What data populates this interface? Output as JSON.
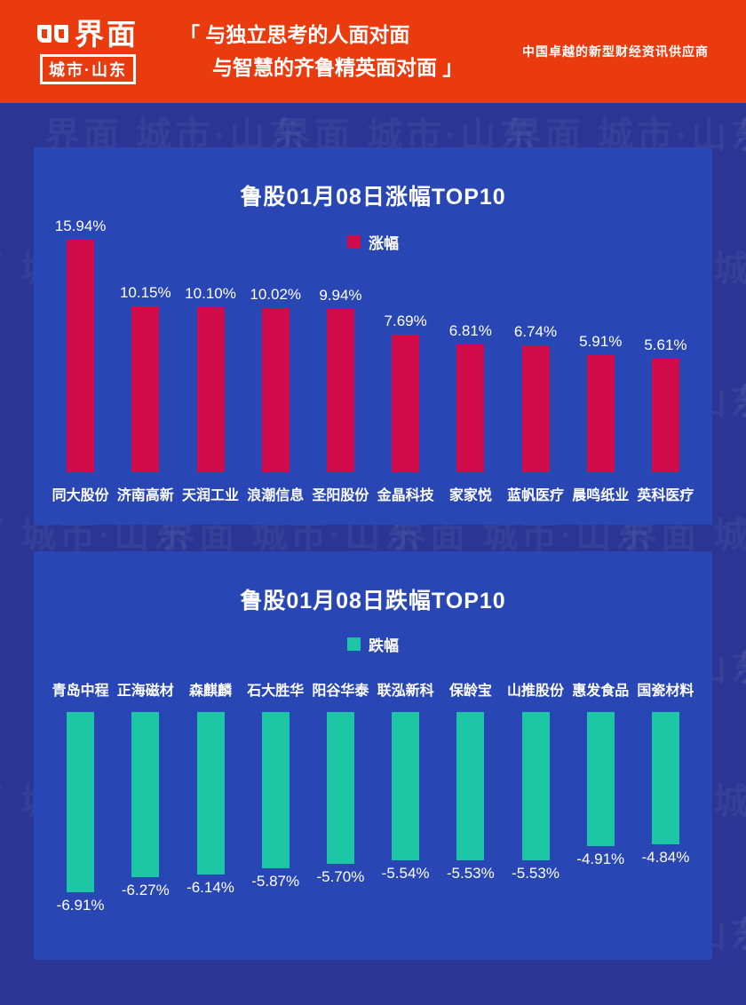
{
  "header": {
    "logo_name": "界面",
    "logo_sub": "城市·山东",
    "quote_line1": "「 与独立思考的人面对面",
    "quote_line2": "与智慧的齐鲁精英面对面 」",
    "tagline": "中国卓越的新型财经资讯供应商"
  },
  "watermark": "界面 城市·山东",
  "colors": {
    "page_bg": "#2a3594",
    "panel_bg": "#2946b5",
    "header_bg": "#ea3b0f",
    "rise_bar": "#d20c4b",
    "fall_bar": "#1dc7a5"
  },
  "chart_data": [
    {
      "type": "bar",
      "title": "鲁股01月08日涨幅TOP10",
      "legend": "涨幅",
      "legend_position": "top-center",
      "bar_color": "#d20c4b",
      "categories": [
        "同大股份",
        "济南高新",
        "天润工业",
        "浪潮信息",
        "圣阳股份",
        "金晶科技",
        "家家悦",
        "蓝帆医疗",
        "晨鸣纸业",
        "英科医疗"
      ],
      "values": [
        15.94,
        10.15,
        10.1,
        10.02,
        9.94,
        7.69,
        6.81,
        6.74,
        5.91,
        5.61
      ],
      "labels": [
        "15.94%",
        "10.15%",
        "10.10%",
        "10.02%",
        "9.94%",
        "7.69%",
        "6.81%",
        "6.74%",
        "5.91%",
        "5.61%"
      ],
      "xlabel": "",
      "ylabel": "",
      "ylim": [
        0,
        16
      ],
      "grid": false
    },
    {
      "type": "bar",
      "title": "鲁股01月08日跌幅TOP10",
      "legend": "跌幅",
      "legend_position": "top-center",
      "bar_color": "#1dc7a5",
      "categories": [
        "青岛中程",
        "正海磁材",
        "森麒麟",
        "石大胜华",
        "阳谷华泰",
        "联泓新科",
        "保龄宝",
        "山推股份",
        "惠发食品",
        "国瓷材料"
      ],
      "values": [
        -6.91,
        -6.27,
        -6.14,
        -5.87,
        -5.7,
        -5.54,
        -5.53,
        -5.53,
        -4.91,
        -4.84
      ],
      "labels": [
        "-6.91%",
        "-6.27%",
        "-6.14%",
        "-5.87%",
        "-5.70%",
        "-5.54%",
        "-5.53%",
        "-5.53%",
        "-4.91%",
        "-4.84%"
      ],
      "xlabel": "",
      "ylabel": "",
      "ylim": [
        -7,
        0
      ],
      "grid": false
    }
  ]
}
